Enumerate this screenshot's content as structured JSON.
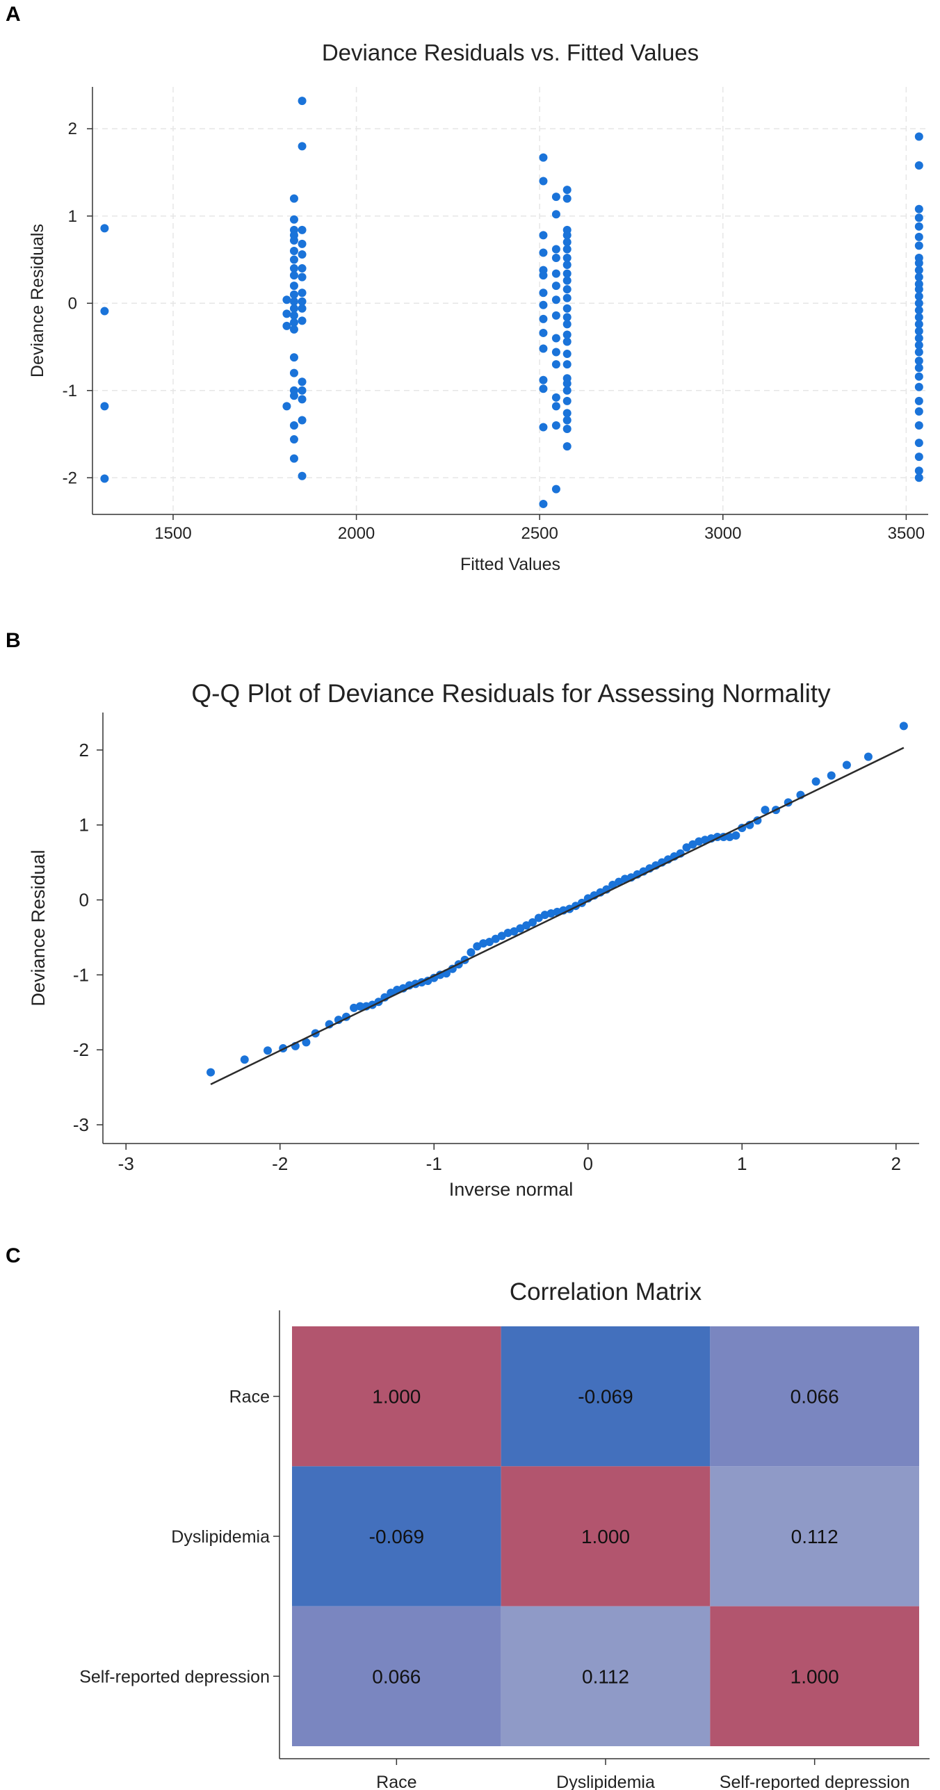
{
  "panel_labels": {
    "a": "A",
    "b": "B",
    "c": "C"
  },
  "colors": {
    "point": "#1a73d9",
    "line": "#2b2b2b",
    "grid": "#e6e6e6",
    "axis": "#333333",
    "high": "#b2556e",
    "low": "#4370bd",
    "mid1": "#7a86c0",
    "mid2": "#8f9ac7"
  },
  "chart_data": [
    {
      "type": "scatter",
      "title": "Deviance Residuals vs. Fitted Values",
      "xlabel": "Fitted Values",
      "ylabel": "Deviance Residuals",
      "xlim": [
        1280,
        3560
      ],
      "ylim": [
        -2.42,
        2.48
      ],
      "xticks": [
        1500,
        2000,
        2500,
        3000,
        3500
      ],
      "xtick_labels": [
        "1500",
        "2000",
        "2500",
        "3000",
        "3500"
      ],
      "yticks": [
        -2,
        -1,
        0,
        1,
        2
      ],
      "ytick_labels": [
        "-2",
        "-1",
        "0",
        "1",
        "2"
      ],
      "grid": true,
      "series": [
        {
          "name": "1313",
          "x_value": 1313,
          "y": [
            0.86,
            -0.09,
            -1.18,
            -2.01
          ]
        },
        {
          "name": "1830",
          "x_value": 1830,
          "y": [
            1.2,
            0.96,
            0.84,
            0.78,
            0.72,
            0.6,
            0.5,
            0.4,
            0.32,
            0.2,
            0.1,
            0.02,
            -0.06,
            -0.14,
            -0.22,
            -0.3,
            -0.62,
            -0.8,
            -1.0,
            -1.06,
            -1.4,
            -1.56,
            -1.78
          ]
        },
        {
          "name": "1852",
          "x_value": 1852,
          "y": [
            2.32,
            1.8,
            0.84,
            0.68,
            0.56,
            0.4,
            0.3,
            0.12,
            0.02,
            -0.06,
            -0.2,
            -0.9,
            -1.0,
            -1.1,
            -1.34,
            -1.98
          ]
        },
        {
          "name": "1810",
          "x_value": 1810,
          "y": [
            0.04,
            -0.12,
            -0.26,
            -1.18
          ]
        },
        {
          "name": "2510",
          "x_value": 2510,
          "y": [
            1.67,
            1.4,
            0.78,
            0.58,
            0.38,
            0.32,
            0.12,
            -0.02,
            -0.18,
            -0.34,
            -0.52,
            -0.88,
            -0.98,
            -1.42,
            -2.3
          ]
        },
        {
          "name": "2545",
          "x_value": 2545,
          "y": [
            1.22,
            1.02,
            0.62,
            0.52,
            0.34,
            0.2,
            0.04,
            -0.14,
            -0.4,
            -0.56,
            -0.7,
            -1.08,
            -1.18,
            -1.4,
            -2.13
          ]
        },
        {
          "name": "2575",
          "x_value": 2575,
          "y": [
            1.3,
            1.2,
            0.84,
            0.78,
            0.7,
            0.62,
            0.52,
            0.44,
            0.34,
            0.26,
            0.16,
            0.06,
            -0.06,
            -0.16,
            -0.24,
            -0.36,
            -0.44,
            -0.58,
            -0.7,
            -0.86,
            -0.92,
            -1.0,
            -1.12,
            -1.26,
            -1.34,
            -1.44,
            -1.64
          ]
        },
        {
          "name": "3535",
          "x_value": 3535,
          "y": [
            1.91,
            1.58,
            1.08,
            0.98,
            0.88,
            0.76,
            0.66,
            0.52,
            0.46,
            0.38,
            0.3,
            0.22,
            0.16,
            0.08,
            0.0,
            -0.08,
            -0.16,
            -0.24,
            -0.32,
            -0.4,
            -0.48,
            -0.56,
            -0.66,
            -0.74,
            -0.84,
            -0.96,
            -1.12,
            -1.24,
            -1.4,
            -1.6,
            -1.76,
            -1.92,
            -2.0
          ]
        }
      ]
    },
    {
      "type": "scatter",
      "title": "Q-Q Plot of Deviance Residuals for Assessing Normality",
      "xlabel": "Inverse normal",
      "ylabel": "Deviance Residual",
      "xlim": [
        -3.15,
        2.15
      ],
      "ylim": [
        -3.25,
        2.5
      ],
      "xticks": [
        -3,
        -2,
        -1,
        0,
        1,
        2
      ],
      "xtick_labels": [
        "-3",
        "-2",
        "-1",
        "0",
        "1",
        "2"
      ],
      "yticks": [
        -3,
        -2,
        -1,
        0,
        1,
        2
      ],
      "ytick_labels": [
        "-3",
        "-2",
        "-1",
        "0",
        "1",
        "2"
      ],
      "grid": false,
      "reference_line": {
        "x": [
          -2.45,
          2.05
        ],
        "y": [
          -2.46,
          2.03
        ]
      },
      "series": [
        {
          "name": "residuals",
          "x": [
            -2.45,
            -2.23,
            -2.08,
            -1.98,
            -1.9,
            -1.83,
            -1.77,
            -1.68,
            -1.62,
            -1.57,
            -1.52,
            -1.48,
            -1.44,
            -1.4,
            -1.36,
            -1.32,
            -1.28,
            -1.24,
            -1.2,
            -1.16,
            -1.12,
            -1.08,
            -1.04,
            -1.0,
            -0.96,
            -0.92,
            -0.88,
            -0.84,
            -0.8,
            -0.76,
            -0.72,
            -0.68,
            -0.64,
            -0.6,
            -0.56,
            -0.52,
            -0.48,
            -0.44,
            -0.4,
            -0.36,
            -0.32,
            -0.28,
            -0.24,
            -0.2,
            -0.16,
            -0.12,
            -0.08,
            -0.04,
            0.0,
            0.04,
            0.08,
            0.12,
            0.16,
            0.2,
            0.24,
            0.28,
            0.32,
            0.36,
            0.4,
            0.44,
            0.48,
            0.52,
            0.56,
            0.6,
            0.64,
            0.68,
            0.72,
            0.76,
            0.8,
            0.84,
            0.88,
            0.92,
            0.96,
            1.0,
            1.05,
            1.1,
            1.15,
            1.22,
            1.3,
            1.38,
            1.48,
            1.58,
            1.68,
            1.82,
            2.05
          ],
          "y": [
            -2.3,
            -2.13,
            -2.01,
            -1.98,
            -1.95,
            -1.9,
            -1.78,
            -1.66,
            -1.6,
            -1.56,
            -1.44,
            -1.42,
            -1.42,
            -1.4,
            -1.36,
            -1.3,
            -1.24,
            -1.2,
            -1.18,
            -1.14,
            -1.12,
            -1.1,
            -1.08,
            -1.04,
            -1.0,
            -0.98,
            -0.92,
            -0.86,
            -0.8,
            -0.7,
            -0.62,
            -0.58,
            -0.56,
            -0.52,
            -0.48,
            -0.44,
            -0.42,
            -0.38,
            -0.34,
            -0.3,
            -0.24,
            -0.2,
            -0.18,
            -0.16,
            -0.14,
            -0.12,
            -0.08,
            -0.04,
            0.02,
            0.06,
            0.1,
            0.14,
            0.2,
            0.24,
            0.28,
            0.3,
            0.34,
            0.38,
            0.42,
            0.46,
            0.5,
            0.54,
            0.58,
            0.62,
            0.7,
            0.74,
            0.78,
            0.8,
            0.82,
            0.84,
            0.84,
            0.84,
            0.86,
            0.96,
            1.0,
            1.06,
            1.2,
            1.2,
            1.3,
            1.4,
            1.58,
            1.66,
            1.8,
            1.91,
            2.32
          ]
        }
      ]
    },
    {
      "type": "heatmap",
      "title": "Correlation Matrix",
      "rows": [
        "Race",
        "Dyslipidemia",
        "Self-reported depression"
      ],
      "cols": [
        "Race",
        "Dyslipidemia",
        "Self-reported depression"
      ],
      "values": [
        [
          1.0,
          -0.069,
          0.066
        ],
        [
          -0.069,
          1.0,
          0.112
        ],
        [
          0.066,
          0.112,
          1.0
        ]
      ],
      "labels": [
        [
          "1.000",
          "-0.069",
          "0.066"
        ],
        [
          "-0.069",
          "1.000",
          "0.112"
        ],
        [
          "0.066",
          "0.112",
          "1.000"
        ]
      ],
      "cell_colors": [
        [
          "#b2556e",
          "#4370bd",
          "#7a86c0"
        ],
        [
          "#4370bd",
          "#b2556e",
          "#8f9ac7"
        ],
        [
          "#7a86c0",
          "#8f9ac7",
          "#b2556e"
        ]
      ]
    }
  ]
}
